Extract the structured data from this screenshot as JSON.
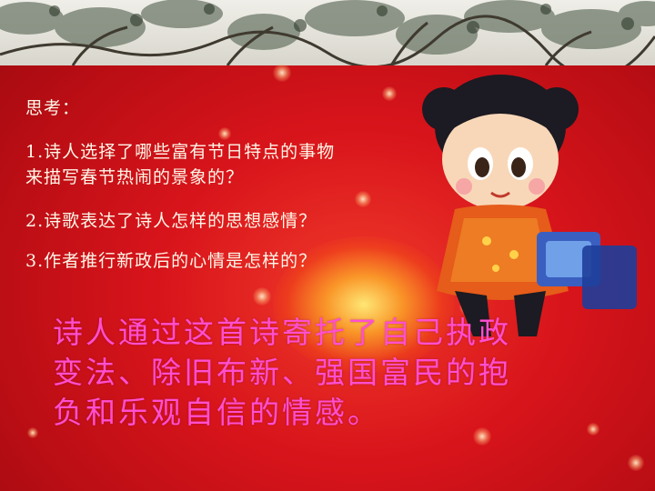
{
  "questions": {
    "heading": "思考：",
    "q1_line1": "1.诗人选择了哪些富有节日特点的事物",
    "q1_line2": "来描写春节热闹的景象的？",
    "q2": "2.诗歌表达了诗人怎样的思想感情？",
    "q3": "3.作者推行新政后的心情是怎样的？"
  },
  "answer": {
    "line1": "诗人通过这首诗寄托了自己执政",
    "line2": "变法、除旧布新、强国富民的抱",
    "line3": "负和乐观自信的情感。"
  },
  "colors": {
    "background": "#d8141b",
    "question_text": "#fff7e8",
    "answer_text": "#ff4fd0"
  }
}
